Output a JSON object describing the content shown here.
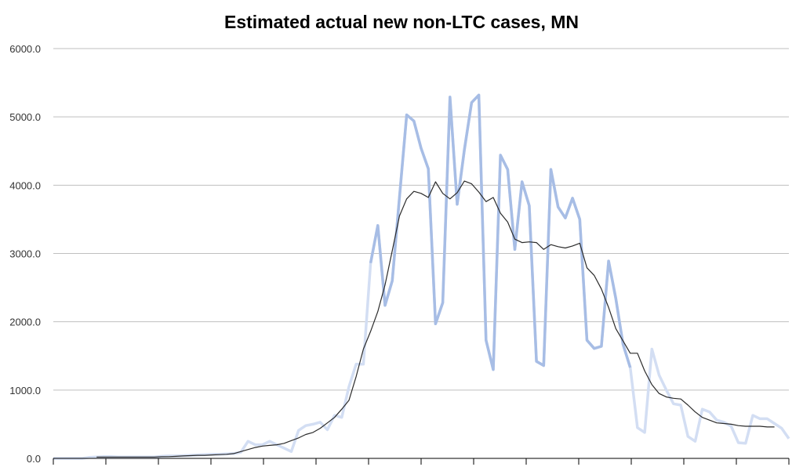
{
  "chart_data": {
    "type": "line",
    "title": "Estimated actual new non-LTC cases, MN",
    "xlabel": "",
    "ylabel": "",
    "ylim": [
      0,
      6000
    ],
    "y_ticks": [
      "0.0",
      "1000.0",
      "2000.0",
      "3000.0",
      "4000.0",
      "5000.0",
      "6000.0"
    ],
    "grid": true,
    "legend": "none",
    "x_tick_count": 14,
    "colors": {
      "daily_light": "#d3def3",
      "daily_dark": "#a7bde5",
      "average": "#2b2b2b",
      "grid": "#bfbfbf",
      "axis": "#000000"
    },
    "series": [
      {
        "style": "daily",
        "values": [
          0,
          0,
          0,
          0,
          0,
          15,
          20,
          25,
          25,
          20,
          20,
          20,
          20,
          20,
          20,
          30,
          35,
          35,
          40,
          45,
          50,
          55,
          60,
          60,
          65,
          70,
          90,
          250,
          200,
          200,
          250,
          200,
          150,
          100,
          410,
          480,
          500,
          530,
          420,
          630,
          600,
          1050,
          1380,
          1380,
          2860,
          3410,
          2240,
          2600,
          3820,
          5030,
          4940,
          4540,
          4240,
          1970,
          2280,
          5290,
          3720,
          4520,
          5210,
          5320,
          1730,
          1300,
          4440,
          4230,
          3060,
          4050,
          3700,
          1420,
          1360,
          4230,
          3680,
          3520,
          3810,
          3500,
          1730,
          1610,
          1640,
          2890,
          2340,
          1670,
          1330,
          450,
          380,
          1600,
          1220,
          1000,
          800,
          780,
          320,
          250,
          720,
          680,
          560,
          530,
          470,
          230,
          220,
          630,
          580,
          580,
          510,
          440,
          290
        ],
        "dark_ranges": [
          [
            44,
            80
          ]
        ]
      },
      {
        "style": "average",
        "start_index": 6,
        "values": [
          20,
          20,
          20,
          20,
          20,
          20,
          20,
          20,
          20,
          25,
          25,
          30,
          35,
          40,
          45,
          45,
          50,
          55,
          60,
          70,
          100,
          130,
          160,
          180,
          190,
          200,
          220,
          260,
          300,
          350,
          380,
          440,
          520,
          600,
          720,
          850,
          1200,
          1600,
          1860,
          2150,
          2540,
          3040,
          3550,
          3800,
          3910,
          3880,
          3820,
          4050,
          3880,
          3800,
          3890,
          4060,
          4020,
          3900,
          3760,
          3820,
          3590,
          3460,
          3210,
          3160,
          3170,
          3160,
          3060,
          3130,
          3100,
          3080,
          3110,
          3150,
          2790,
          2680,
          2480,
          2210,
          1900,
          1720,
          1540,
          1540,
          1280,
          1080,
          950,
          900,
          880,
          870,
          780,
          680,
          600,
          560,
          520,
          510,
          500,
          480,
          470,
          470,
          470,
          460,
          460
        ]
      }
    ]
  }
}
